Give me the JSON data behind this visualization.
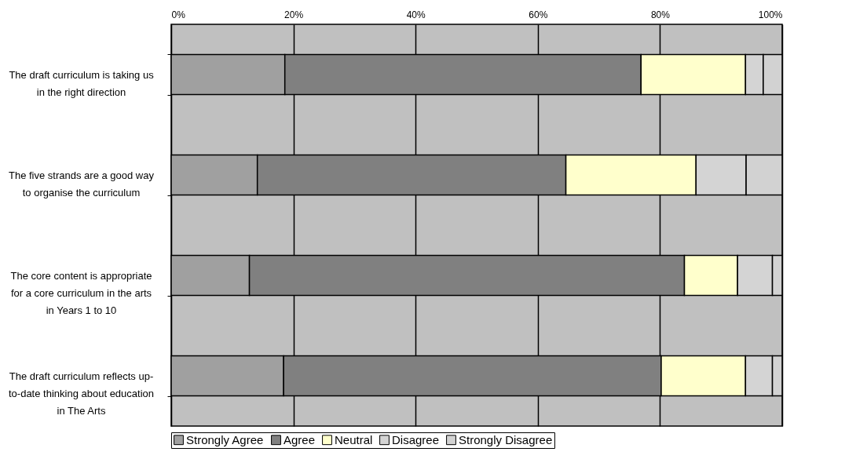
{
  "chart_data": {
    "type": "bar",
    "orientation": "horizontal",
    "stacked": true,
    "categories": [
      "The draft curriculum is taking us in the right direction",
      "The five strands are a good way to organise the curriculum",
      "The core content is appropriate for a core curriculum in the arts in Years 1 to 10",
      "The draft curriculum reflects up-to-date thinking about education in The Arts"
    ],
    "series": [
      {
        "name": "Strongly Agree",
        "color": "#a0a0a0",
        "values": [
          18.6,
          14.1,
          12.8,
          18.4
        ]
      },
      {
        "name": "Agree",
        "color": "#808080",
        "values": [
          58.3,
          50.5,
          71.2,
          61.8
        ]
      },
      {
        "name": "Neutral",
        "color": "#ffffcc",
        "values": [
          17.1,
          21.3,
          8.7,
          13.8
        ]
      },
      {
        "name": "Disagree",
        "color": "#d4d4d4",
        "values": [
          2.9,
          8.2,
          5.7,
          4.4
        ]
      },
      {
        "name": "Strongly Disagree",
        "color": "#d2d2d2",
        "values": [
          3.1,
          5.9,
          1.6,
          1.6
        ]
      }
    ],
    "xlim": [
      0,
      100
    ],
    "xticks": [
      {
        "value": 0,
        "label": "0%"
      },
      {
        "value": 20,
        "label": "20%"
      },
      {
        "value": 40,
        "label": "40%"
      },
      {
        "value": 60,
        "label": "60%"
      },
      {
        "value": 80,
        "label": "80%"
      },
      {
        "value": 100,
        "label": "100%"
      }
    ],
    "grid": "x",
    "legend": "bottom"
  }
}
